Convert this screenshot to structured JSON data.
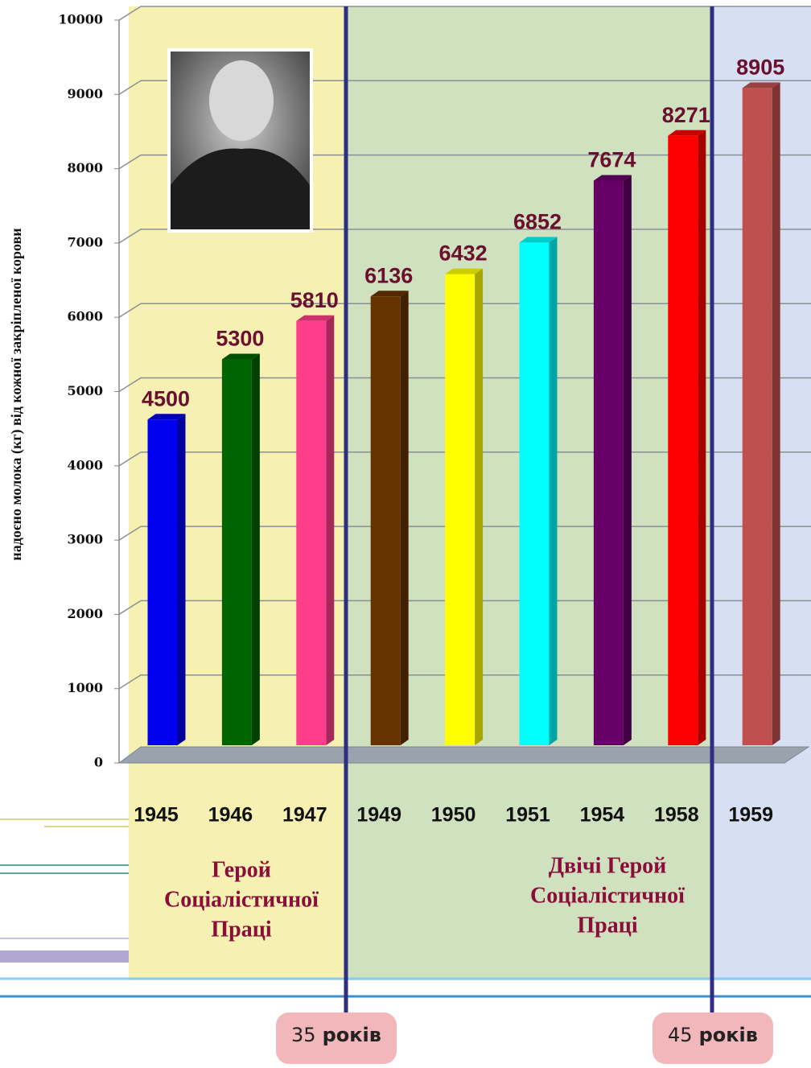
{
  "chart_data": {
    "type": "bar",
    "y_axis_label": "надоєно молока (кг) від кожної закріпленої корови",
    "categories": [
      "1945",
      "1946",
      "1947",
      "1949",
      "1950",
      "1951",
      "1954",
      "1958",
      "1959"
    ],
    "values": [
      4500,
      5300,
      5810,
      6136,
      6432,
      6852,
      7674,
      8271,
      8905
    ],
    "colors": [
      "#0000ee",
      "#006400",
      "#ff3d8a",
      "#663300",
      "#ffff00",
      "#00ffff",
      "#660066",
      "#ff0000",
      "#c0504d"
    ],
    "ylim": [
      0,
      10000
    ],
    "yticks": [
      0,
      1000,
      2000,
      3000,
      4000,
      5000,
      6000,
      7000,
      8000,
      9000,
      10000
    ],
    "grid": true,
    "annotations": [
      {
        "lines": [
          "Герой",
          "Соціалістичної",
          "Праці"
        ]
      },
      {
        "lines": [
          "Двічі Герой",
          "Соціалістичної",
          "Праці"
        ]
      }
    ],
    "markers": [
      {
        "number": "35",
        "unit": "років"
      },
      {
        "number": "45",
        "unit": "років"
      }
    ]
  }
}
